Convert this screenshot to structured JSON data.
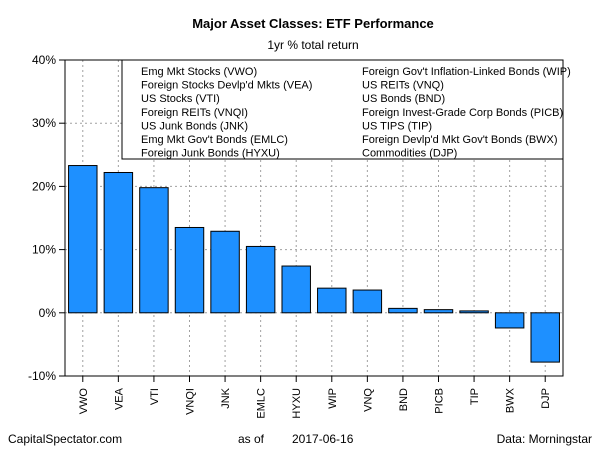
{
  "chart_data": {
    "type": "bar",
    "title": "Major Asset Classes: ETF Performance",
    "subtitle": "1yr % total return",
    "categories": [
      "VWO",
      "VEA",
      "VTI",
      "VNQI",
      "JNK",
      "EMLC",
      "HYXU",
      "WIP",
      "VNQ",
      "BND",
      "PICB",
      "TIP",
      "BWX",
      "DJP"
    ],
    "values": [
      23.3,
      22.2,
      19.8,
      13.5,
      12.9,
      10.5,
      7.4,
      3.9,
      3.6,
      0.7,
      0.5,
      0.3,
      -2.4,
      -7.8
    ],
    "ylim": [
      -10,
      40
    ],
    "yticks": [
      -10,
      0,
      10,
      20,
      30,
      40
    ],
    "ytick_labels": [
      "-10%",
      "0%",
      "10%",
      "20%",
      "30%",
      "40%"
    ],
    "grid": true,
    "bar_color": "#1e90ff",
    "legend_left": [
      "Emg Mkt Stocks (VWO)",
      "Foreign Stocks Devlp'd Mkts (VEA)",
      "US Stocks (VTI)",
      "Foreign REITs (VNQI)",
      "US Junk Bonds (JNK)",
      "Emg Mkt Gov't Bonds (EMLC)",
      "Foreign Junk Bonds (HYXU)"
    ],
    "legend_right": [
      "Foreign Gov't Inflation-Linked Bonds (WIP)",
      "US REITs (VNQ)",
      "US Bonds (BND)",
      "Foreign Invest-Grade Corp Bonds (PICB)",
      "US TIPS (TIP)",
      "Foreign Devlp'd Mkt Gov't Bonds (BWX)",
      "Commodities (DJP)"
    ],
    "legend_position": "top-right"
  },
  "footer": {
    "source_site": "CapitalSpectator.com",
    "as_of_label": "as of",
    "as_of_date": "2017-06-16",
    "data_source": "Data: Morningstar"
  }
}
